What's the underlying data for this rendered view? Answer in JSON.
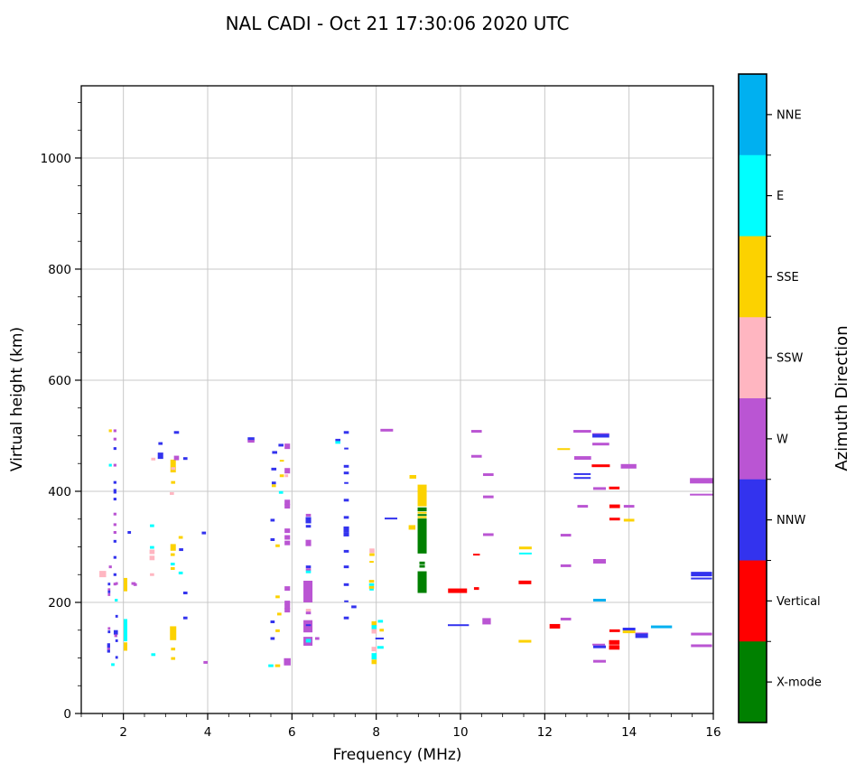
{
  "chart_data": {
    "type": "scatter",
    "title": "NAL CADI - Oct 21 17:30:06 2020 UTC",
    "xlabel": "Frequency (MHz)",
    "ylabel": "Virtual height (km)",
    "xlim": [
      1,
      16
    ],
    "ylim": [
      0,
      1130
    ],
    "xticks": [
      2,
      4,
      6,
      8,
      10,
      12,
      14,
      16
    ],
    "yticks": [
      0,
      200,
      400,
      600,
      800,
      1000
    ],
    "x_minor_step": 0.5,
    "y_minor_step": 50,
    "grid": true,
    "grid_color": "#c8c8c8",
    "legend_title": "Azimuth Direction",
    "legend_position": "right-colorbar",
    "categories": [
      {
        "label": "NNE",
        "color": "#00b0f0"
      },
      {
        "label": "E",
        "color": "#00ffff"
      },
      {
        "label": "SSE",
        "color": "#fcd200"
      },
      {
        "label": "SSW",
        "color": "#ffb6c1"
      },
      {
        "label": "W",
        "color": "#ba55d3"
      },
      {
        "label": "NNW",
        "color": "#3333ee"
      },
      {
        "label": "Vertical",
        "color": "#ff0000"
      },
      {
        "label": "X-mode",
        "color": "#008000"
      }
    ],
    "point_format": "[freq_MHz, height_km, category_index, width_MHz, thickness_px]",
    "points": [
      [
        1.69,
        509,
        2,
        0.07,
        3
      ],
      [
        1.8,
        509,
        4,
        0.07,
        3
      ],
      [
        1.8,
        494,
        4,
        0.07,
        3
      ],
      [
        1.8,
        477,
        5,
        0.07,
        3
      ],
      [
        1.69,
        447,
        1,
        0.07,
        3
      ],
      [
        1.8,
        447,
        4,
        0.07,
        3
      ],
      [
        1.8,
        416,
        5,
        0.07,
        3
      ],
      [
        1.8,
        400,
        5,
        0.07,
        5
      ],
      [
        1.8,
        386,
        5,
        0.07,
        3
      ],
      [
        1.8,
        359,
        4,
        0.07,
        3
      ],
      [
        1.8,
        340,
        4,
        0.07,
        3
      ],
      [
        1.8,
        326,
        4,
        0.07,
        3
      ],
      [
        1.8,
        310,
        5,
        0.07,
        3
      ],
      [
        1.8,
        281,
        5,
        0.07,
        3
      ],
      [
        1.69,
        264,
        4,
        0.07,
        3
      ],
      [
        1.51,
        251,
        3,
        0.16,
        7
      ],
      [
        1.8,
        250,
        5,
        0.07,
        3
      ],
      [
        1.8,
        233,
        4,
        0.07,
        3
      ],
      [
        1.66,
        233,
        5,
        0.06,
        3
      ],
      [
        1.84,
        234,
        4,
        0.06,
        3
      ],
      [
        2.24,
        234,
        4,
        0.1,
        3
      ],
      [
        1.66,
        223,
        4,
        0.06,
        3
      ],
      [
        1.66,
        219,
        5,
        0.06,
        3
      ],
      [
        1.66,
        214,
        4,
        0.06,
        3
      ],
      [
        1.83,
        204,
        1,
        0.07,
        3
      ],
      [
        1.84,
        175,
        5,
        0.06,
        3
      ],
      [
        1.66,
        153,
        4,
        0.06,
        3
      ],
      [
        1.66,
        147,
        5,
        0.06,
        3
      ],
      [
        1.82,
        146,
        5,
        0.1,
        5
      ],
      [
        1.82,
        140,
        4,
        0.07,
        3
      ],
      [
        1.84,
        131,
        5,
        0.06,
        3
      ],
      [
        1.65,
        124,
        5,
        0.07,
        3
      ],
      [
        1.65,
        120,
        5,
        0.07,
        3
      ],
      [
        1.65,
        116,
        4,
        0.07,
        3
      ],
      [
        1.65,
        112,
        5,
        0.07,
        3
      ],
      [
        1.84,
        101,
        5,
        0.06,
        3
      ],
      [
        1.75,
        88,
        1,
        0.08,
        3
      ],
      [
        2.14,
        326,
        5,
        0.08,
        3
      ],
      [
        2.28,
        232,
        4,
        0.08,
        3
      ],
      [
        2.68,
        338,
        1,
        0.1,
        3
      ],
      [
        2.68,
        299,
        1,
        0.1,
        3
      ],
      [
        2.68,
        291,
        3,
        0.12,
        5
      ],
      [
        2.68,
        280,
        3,
        0.12,
        5
      ],
      [
        2.68,
        250,
        3,
        0.1,
        3
      ],
      [
        2.71,
        106,
        1,
        0.1,
        3
      ],
      [
        2.71,
        458,
        3,
        0.1,
        3
      ],
      [
        2.88,
        486,
        5,
        0.1,
        3
      ],
      [
        2.88,
        464,
        5,
        0.13,
        7
      ],
      [
        3.26,
        506,
        5,
        0.12,
        3
      ],
      [
        3.26,
        460,
        4,
        0.12,
        5
      ],
      [
        3.47,
        459,
        5,
        0.1,
        3
      ],
      [
        3.18,
        441,
        3,
        0.1,
        3
      ],
      [
        3.18,
        416,
        2,
        0.1,
        3
      ],
      [
        3.15,
        396,
        3,
        0.1,
        3
      ],
      [
        3.36,
        317,
        2,
        0.1,
        3
      ],
      [
        3.37,
        295,
        5,
        0.1,
        3
      ],
      [
        3.17,
        286,
        2,
        0.1,
        3
      ],
      [
        3.17,
        269,
        1,
        0.1,
        3
      ],
      [
        3.17,
        261,
        2,
        0.1,
        3
      ],
      [
        3.36,
        253,
        1,
        0.1,
        3
      ],
      [
        3.47,
        217,
        5,
        0.1,
        3
      ],
      [
        3.47,
        172,
        5,
        0.1,
        3
      ],
      [
        3.18,
        116,
        2,
        0.1,
        3
      ],
      [
        3.18,
        99,
        2,
        0.1,
        3
      ],
      [
        3.91,
        325,
        5,
        0.1,
        3
      ],
      [
        3.95,
        92,
        4,
        0.1,
        3
      ],
      [
        5.03,
        494,
        5,
        0.16,
        4
      ],
      [
        5.03,
        490,
        4,
        0.16,
        3
      ],
      [
        5.74,
        483,
        5,
        0.12,
        3
      ],
      [
        5.89,
        481,
        4,
        0.13,
        6
      ],
      [
        5.59,
        470,
        5,
        0.12,
        3
      ],
      [
        5.76,
        455,
        2,
        0.1,
        2
      ],
      [
        5.57,
        440,
        5,
        0.12,
        3
      ],
      [
        5.89,
        437,
        4,
        0.13,
        6
      ],
      [
        5.76,
        428,
        2,
        0.1,
        3
      ],
      [
        5.87,
        428,
        3,
        0.08,
        3
      ],
      [
        5.57,
        415,
        5,
        0.1,
        3
      ],
      [
        5.57,
        410,
        2,
        0.1,
        3
      ],
      [
        5.74,
        398,
        1,
        0.1,
        3
      ],
      [
        5.89,
        380,
        4,
        0.13,
        6
      ],
      [
        5.89,
        373,
        4,
        0.13,
        5
      ],
      [
        5.54,
        348,
        5,
        0.1,
        3
      ],
      [
        5.89,
        329,
        4,
        0.13,
        5
      ],
      [
        5.89,
        317,
        4,
        0.13,
        5
      ],
      [
        5.89,
        307,
        4,
        0.13,
        5
      ],
      [
        5.54,
        313,
        5,
        0.1,
        3
      ],
      [
        5.66,
        302,
        2,
        0.1,
        3
      ],
      [
        5.89,
        225,
        4,
        0.13,
        5
      ],
      [
        5.66,
        210,
        2,
        0.1,
        3
      ],
      [
        5.89,
        199,
        4,
        0.13,
        5
      ],
      [
        5.89,
        192,
        4,
        0.13,
        5
      ],
      [
        5.89,
        186,
        4,
        0.13,
        5
      ],
      [
        5.7,
        179,
        2,
        0.1,
        3
      ],
      [
        5.54,
        165,
        5,
        0.1,
        3
      ],
      [
        5.66,
        149,
        2,
        0.1,
        3
      ],
      [
        5.54,
        135,
        5,
        0.1,
        3
      ],
      [
        5.5,
        86,
        1,
        0.12,
        3
      ],
      [
        5.66,
        86,
        2,
        0.12,
        3
      ],
      [
        5.89,
        93,
        4,
        0.16,
        8
      ],
      [
        6.6,
        135,
        4,
        0.1,
        3
      ],
      [
        6.39,
        357,
        4,
        0.12,
        3
      ],
      [
        6.39,
        348,
        5,
        0.13,
        7
      ],
      [
        6.39,
        337,
        5,
        0.12,
        3
      ],
      [
        6.39,
        307,
        4,
        0.13,
        7
      ],
      [
        6.39,
        264,
        5,
        0.12,
        3
      ],
      [
        6.39,
        259,
        4,
        0.12,
        3
      ],
      [
        6.39,
        255,
        1,
        0.12,
        3
      ],
      [
        6.39,
        186,
        3,
        0.12,
        3
      ],
      [
        6.39,
        181,
        4,
        0.12,
        3
      ],
      [
        6.39,
        159,
        5,
        0.12,
        2
      ],
      [
        6.39,
        131,
        1,
        0.12,
        4
      ],
      [
        7.09,
        492,
        5,
        0.12,
        3
      ],
      [
        7.09,
        488,
        1,
        0.12,
        3
      ],
      [
        7.29,
        506,
        5,
        0.12,
        3
      ],
      [
        7.29,
        477,
        5,
        0.1,
        2
      ],
      [
        7.29,
        445,
        5,
        0.12,
        3
      ],
      [
        7.29,
        433,
        5,
        0.12,
        3
      ],
      [
        7.29,
        415,
        5,
        0.1,
        2
      ],
      [
        7.29,
        384,
        5,
        0.12,
        3
      ],
      [
        7.29,
        353,
        5,
        0.12,
        3
      ],
      [
        7.29,
        331,
        5,
        0.13,
        7
      ],
      [
        7.29,
        322,
        5,
        0.13,
        4
      ],
      [
        7.29,
        292,
        5,
        0.12,
        3
      ],
      [
        7.29,
        264,
        5,
        0.12,
        3
      ],
      [
        7.29,
        232,
        5,
        0.12,
        3
      ],
      [
        7.29,
        202,
        5,
        0.1,
        2
      ],
      [
        7.47,
        192,
        5,
        0.12,
        3
      ],
      [
        7.29,
        172,
        5,
        0.12,
        3
      ],
      [
        8.25,
        510,
        4,
        0.3,
        3
      ],
      [
        8.35,
        351,
        5,
        0.3,
        2
      ],
      [
        7.9,
        293,
        3,
        0.12,
        5
      ],
      [
        7.9,
        286,
        2,
        0.12,
        3
      ],
      [
        7.89,
        273,
        2,
        0.1,
        2
      ],
      [
        7.89,
        238,
        2,
        0.12,
        3
      ],
      [
        7.89,
        232,
        1,
        0.12,
        3
      ],
      [
        7.89,
        227,
        2,
        0.12,
        3
      ],
      [
        7.89,
        223,
        1,
        0.1,
        2
      ],
      [
        8.1,
        166,
        1,
        0.12,
        3
      ],
      [
        7.95,
        162,
        2,
        0.12,
        5
      ],
      [
        7.95,
        155,
        1,
        0.12,
        5
      ],
      [
        7.95,
        148,
        3,
        0.12,
        5
      ],
      [
        8.13,
        150,
        2,
        0.1,
        3
      ],
      [
        8.08,
        135,
        5,
        0.2,
        2
      ],
      [
        8.1,
        119,
        1,
        0.15,
        3
      ],
      [
        7.95,
        116,
        3,
        0.12,
        5
      ],
      [
        7.95,
        103,
        1,
        0.12,
        7
      ],
      [
        7.95,
        93,
        2,
        0.12,
        5
      ],
      [
        8.87,
        426,
        2,
        0.16,
        4
      ],
      [
        8.85,
        335,
        2,
        0.16,
        5
      ],
      [
        9.09,
        271,
        7,
        0.13,
        3
      ],
      [
        9.09,
        265,
        7,
        0.13,
        3
      ],
      [
        9.93,
        221,
        6,
        0.45,
        5
      ],
      [
        10.38,
        225,
        6,
        0.12,
        3
      ],
      [
        10.38,
        286,
        6,
        0.16,
        2
      ],
      [
        9.95,
        159,
        5,
        0.5,
        2
      ],
      [
        10.38,
        508,
        4,
        0.25,
        3
      ],
      [
        10.38,
        463,
        4,
        0.25,
        3
      ],
      [
        10.66,
        430,
        4,
        0.25,
        3
      ],
      [
        10.66,
        390,
        4,
        0.25,
        3
      ],
      [
        10.66,
        322,
        4,
        0.25,
        3
      ],
      [
        10.62,
        166,
        4,
        0.2,
        7
      ],
      [
        11.54,
        298,
        2,
        0.3,
        3
      ],
      [
        11.54,
        288,
        1,
        0.3,
        2
      ],
      [
        11.53,
        236,
        6,
        0.3,
        4
      ],
      [
        11.53,
        130,
        2,
        0.3,
        3
      ],
      [
        12.24,
        157,
        6,
        0.25,
        5
      ],
      [
        12.45,
        476,
        2,
        0.3,
        2
      ],
      [
        12.89,
        508,
        4,
        0.42,
        3
      ],
      [
        13.33,
        503,
        4,
        0.4,
        2
      ],
      [
        13.33,
        500,
        5,
        0.4,
        4
      ],
      [
        13.33,
        485,
        4,
        0.4,
        3
      ],
      [
        12.9,
        460,
        4,
        0.4,
        4
      ],
      [
        12.89,
        431,
        5,
        0.4,
        2
      ],
      [
        12.89,
        424,
        5,
        0.4,
        2
      ],
      [
        13.33,
        446,
        6,
        0.43,
        3
      ],
      [
        13.99,
        445,
        4,
        0.37,
        5
      ],
      [
        13.3,
        405,
        4,
        0.3,
        3
      ],
      [
        13.65,
        406,
        6,
        0.25,
        3
      ],
      [
        15.72,
        419,
        4,
        0.55,
        6
      ],
      [
        15.72,
        394,
        4,
        0.55,
        2
      ],
      [
        12.9,
        373,
        4,
        0.25,
        3
      ],
      [
        13.66,
        373,
        6,
        0.25,
        4
      ],
      [
        14.0,
        373,
        4,
        0.25,
        3
      ],
      [
        13.66,
        350,
        6,
        0.25,
        3
      ],
      [
        14.0,
        348,
        2,
        0.25,
        3
      ],
      [
        12.5,
        321,
        4,
        0.25,
        3
      ],
      [
        12.5,
        266,
        4,
        0.25,
        3
      ],
      [
        13.3,
        274,
        4,
        0.3,
        5
      ],
      [
        15.72,
        251,
        5,
        0.5,
        5
      ],
      [
        15.72,
        243,
        5,
        0.5,
        2
      ],
      [
        13.3,
        204,
        0,
        0.3,
        3
      ],
      [
        12.5,
        170,
        4,
        0.25,
        3
      ],
      [
        13.66,
        149,
        6,
        0.25,
        3
      ],
      [
        14.0,
        152,
        5,
        0.3,
        3
      ],
      [
        14.0,
        147,
        2,
        0.3,
        3
      ],
      [
        14.77,
        156,
        0,
        0.5,
        3
      ],
      [
        14.3,
        144,
        4,
        0.3,
        2
      ],
      [
        14.3,
        140,
        5,
        0.3,
        5
      ],
      [
        13.65,
        128,
        6,
        0.25,
        5
      ],
      [
        13.65,
        119,
        6,
        0.25,
        5
      ],
      [
        13.28,
        124,
        4,
        0.3,
        2
      ],
      [
        13.3,
        120,
        5,
        0.3,
        3
      ],
      [
        13.3,
        94,
        4,
        0.3,
        3
      ],
      [
        15.72,
        143,
        4,
        0.5,
        3
      ],
      [
        15.72,
        122,
        4,
        0.5,
        3
      ]
    ],
    "column_format": "[freq_MHz, height_low_km, height_high_km, category_index, width_px]",
    "columns": [
      [
        2.05,
        220,
        244,
        2,
        4
      ],
      [
        2.05,
        130,
        170,
        1,
        4
      ],
      [
        2.05,
        113,
        128,
        2,
        4
      ],
      [
        3.18,
        434,
        457,
        2,
        6
      ],
      [
        3.18,
        293,
        305,
        2,
        6
      ],
      [
        3.18,
        132,
        157,
        2,
        7
      ],
      [
        6.38,
        200,
        239,
        4,
        10
      ],
      [
        6.38,
        146,
        168,
        4,
        10
      ],
      [
        6.38,
        122,
        138,
        4,
        10
      ],
      [
        9.09,
        373,
        412,
        2,
        10
      ],
      [
        9.09,
        364,
        371,
        7,
        10
      ],
      [
        9.09,
        360,
        363,
        2,
        10
      ],
      [
        9.09,
        356,
        359,
        7,
        10
      ],
      [
        9.09,
        352,
        355,
        2,
        10
      ],
      [
        9.09,
        288,
        351,
        7,
        10
      ],
      [
        9.09,
        217,
        256,
        7,
        10
      ]
    ]
  }
}
